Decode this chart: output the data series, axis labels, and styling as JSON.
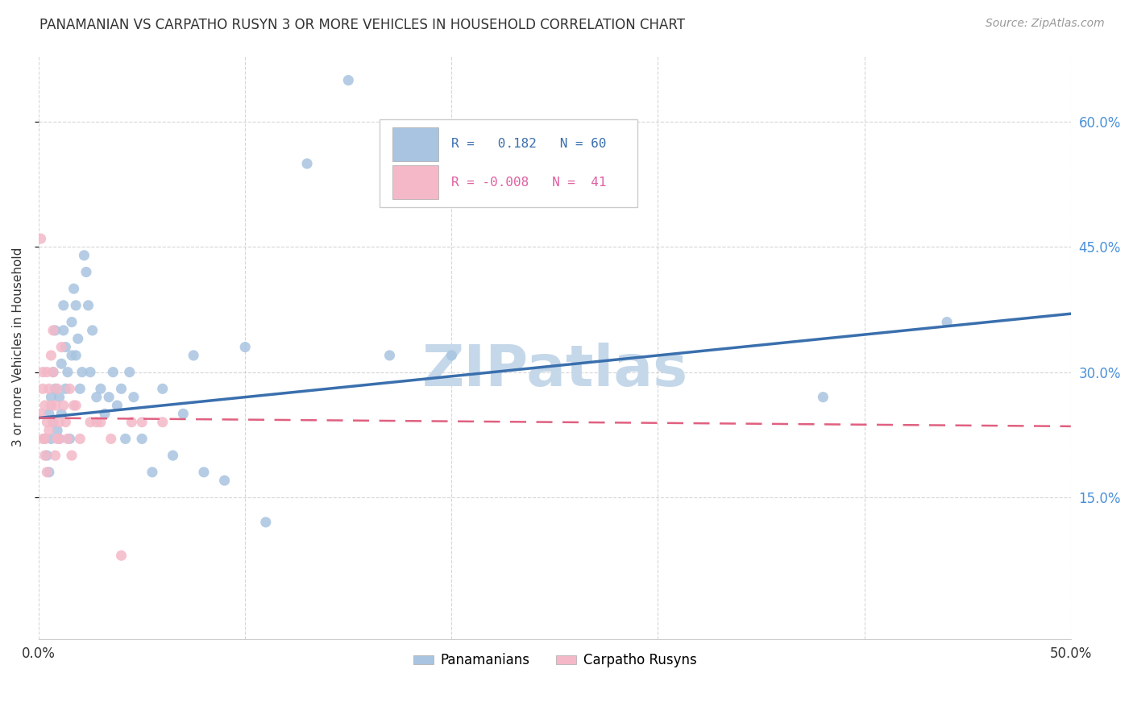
{
  "title": "PANAMANIAN VS CARPATHO RUSYN 3 OR MORE VEHICLES IN HOUSEHOLD CORRELATION CHART",
  "source": "Source: ZipAtlas.com",
  "ylabel": "3 or more Vehicles in Household",
  "ytick_labels": [
    "15.0%",
    "30.0%",
    "45.0%",
    "60.0%"
  ],
  "ytick_values": [
    0.15,
    0.3,
    0.45,
    0.6
  ],
  "xtick_vals": [
    0.0,
    0.1,
    0.2,
    0.3,
    0.4,
    0.5
  ],
  "xtick_labels_bottom": [
    "0.0%",
    "",
    "",
    "",
    "",
    "50.0%"
  ],
  "xlim": [
    0.0,
    0.5
  ],
  "ylim": [
    -0.02,
    0.68
  ],
  "pan_color": "#a8c4e0",
  "car_color": "#f4b8c8",
  "pan_line_color": "#3a6fad",
  "car_line_color": "#e06080",
  "pan_R": 0.182,
  "car_R": -0.008,
  "pan_N": 60,
  "car_N": 41,
  "panamanians_x": [
    0.003,
    0.004,
    0.005,
    0.005,
    0.006,
    0.006,
    0.007,
    0.007,
    0.008,
    0.008,
    0.009,
    0.01,
    0.01,
    0.011,
    0.011,
    0.012,
    0.012,
    0.013,
    0.013,
    0.014,
    0.015,
    0.016,
    0.016,
    0.017,
    0.018,
    0.018,
    0.019,
    0.02,
    0.021,
    0.022,
    0.023,
    0.024,
    0.025,
    0.026,
    0.028,
    0.03,
    0.032,
    0.034,
    0.036,
    0.038,
    0.04,
    0.042,
    0.044,
    0.046,
    0.05,
    0.055,
    0.06,
    0.065,
    0.07,
    0.075,
    0.08,
    0.09,
    0.1,
    0.11,
    0.13,
    0.15,
    0.17,
    0.2,
    0.38,
    0.44
  ],
  "panamanians_y": [
    0.22,
    0.2,
    0.25,
    0.18,
    0.27,
    0.22,
    0.3,
    0.24,
    0.35,
    0.28,
    0.23,
    0.27,
    0.22,
    0.31,
    0.25,
    0.38,
    0.35,
    0.33,
    0.28,
    0.3,
    0.22,
    0.36,
    0.32,
    0.4,
    0.38,
    0.32,
    0.34,
    0.28,
    0.3,
    0.44,
    0.42,
    0.38,
    0.3,
    0.35,
    0.27,
    0.28,
    0.25,
    0.27,
    0.3,
    0.26,
    0.28,
    0.22,
    0.3,
    0.27,
    0.22,
    0.18,
    0.28,
    0.2,
    0.25,
    0.32,
    0.18,
    0.17,
    0.33,
    0.12,
    0.55,
    0.65,
    0.32,
    0.32,
    0.27,
    0.36
  ],
  "carpatho_x": [
    0.001,
    0.001,
    0.002,
    0.002,
    0.002,
    0.003,
    0.003,
    0.003,
    0.004,
    0.004,
    0.004,
    0.005,
    0.005,
    0.006,
    0.006,
    0.007,
    0.007,
    0.007,
    0.008,
    0.008,
    0.009,
    0.009,
    0.01,
    0.01,
    0.011,
    0.012,
    0.013,
    0.014,
    0.015,
    0.016,
    0.017,
    0.018,
    0.02,
    0.025,
    0.028,
    0.03,
    0.035,
    0.04,
    0.045,
    0.05,
    0.06
  ],
  "carpatho_y": [
    0.46,
    0.25,
    0.3,
    0.22,
    0.28,
    0.22,
    0.26,
    0.2,
    0.3,
    0.24,
    0.18,
    0.28,
    0.23,
    0.32,
    0.26,
    0.35,
    0.3,
    0.24,
    0.26,
    0.2,
    0.22,
    0.28,
    0.24,
    0.22,
    0.33,
    0.26,
    0.24,
    0.22,
    0.28,
    0.2,
    0.26,
    0.26,
    0.22,
    0.24,
    0.24,
    0.24,
    0.22,
    0.08,
    0.24,
    0.24,
    0.24
  ],
  "watermark": "ZIPatlas",
  "watermark_color": "#c5d8ea",
  "watermark_fontsize": 52,
  "pan_line_x": [
    0.0,
    0.5
  ],
  "pan_line_y": [
    0.245,
    0.37
  ],
  "car_line_x": [
    0.0,
    0.5
  ],
  "car_line_y": [
    0.245,
    0.235
  ]
}
